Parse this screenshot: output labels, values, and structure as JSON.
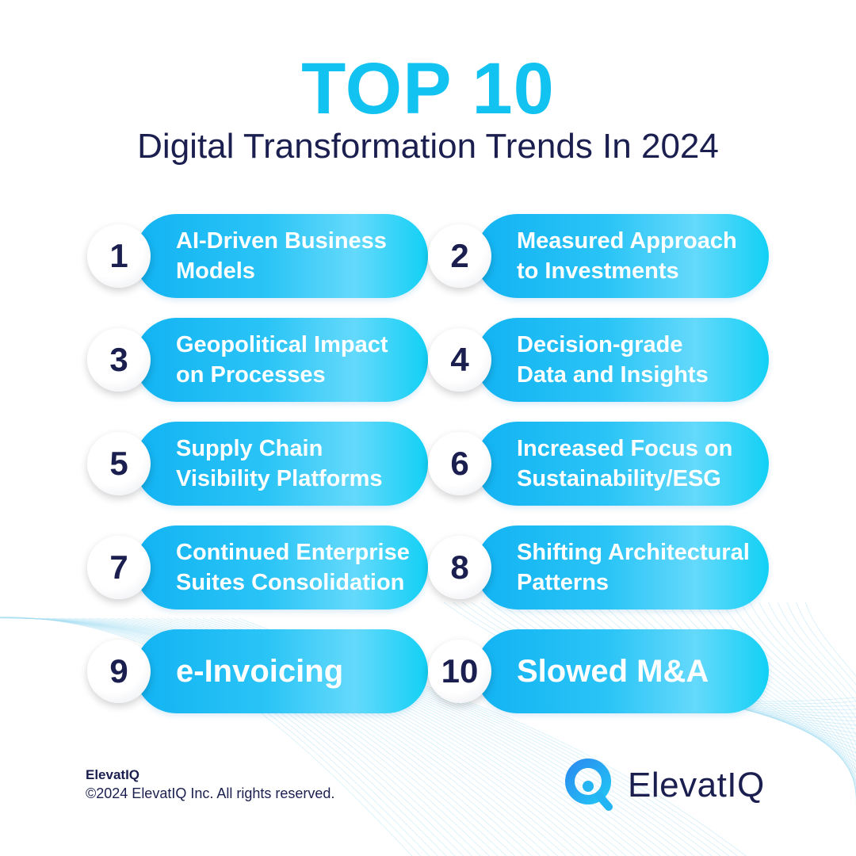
{
  "header": {
    "title": "TOP 10",
    "subtitle": "Digital Transformation Trends In 2024"
  },
  "colors": {
    "accent": "#12c2f0",
    "navy": "#1b1f4f"
  },
  "trends": [
    {
      "number": "1",
      "label": "AI-Driven Business\nModels"
    },
    {
      "number": "2",
      "label": "Measured Approach\nto Investments"
    },
    {
      "number": "3",
      "label": "Geopolitical Impact\non Processes"
    },
    {
      "number": "4",
      "label": "Decision-grade\nData and Insights"
    },
    {
      "number": "5",
      "label": "Supply Chain\nVisibility Platforms"
    },
    {
      "number": "6",
      "label": "Increased Focus on\nSustainability/ESG"
    },
    {
      "number": "7",
      "label": "Continued Enterprise\nSuites Consolidation"
    },
    {
      "number": "8",
      "label": "Shifting Architectural\nPatterns"
    },
    {
      "number": "9",
      "label": "e-Invoicing"
    },
    {
      "number": "10",
      "label": "Slowed M&A"
    }
  ],
  "footer": {
    "brand": "ElevatIQ",
    "copyright": "©2024 ElevatIQ Inc. All rights reserved.",
    "logo_text": "ElevatIQ"
  }
}
